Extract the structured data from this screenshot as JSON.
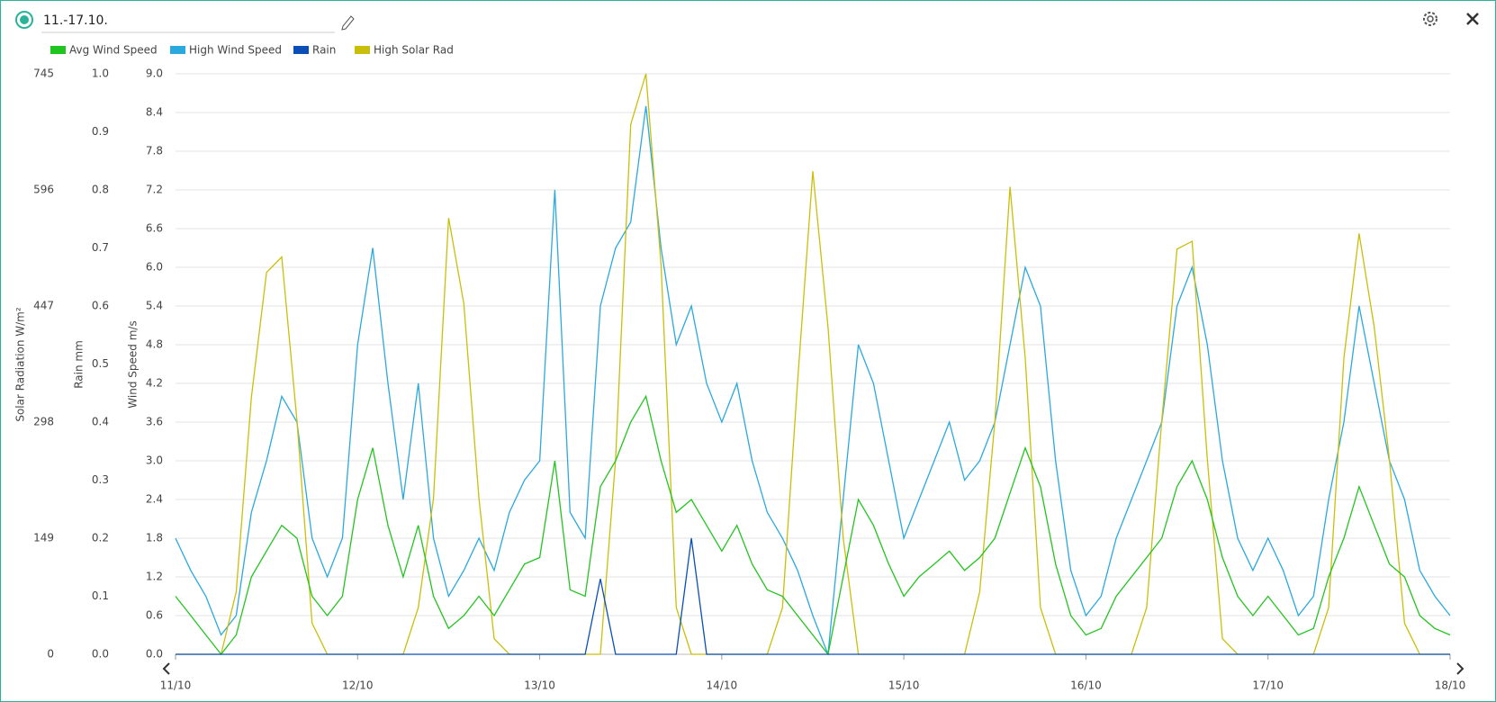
{
  "header": {
    "title": "11.-17.10."
  },
  "chart_data": {
    "type": "line",
    "ylabel": "Wind Speed m/s",
    "y2label": "Rain mm",
    "y3label": "Solar Radiation W/m²",
    "x_labels": [
      "11/10",
      "12/10",
      "13/10",
      "14/10",
      "15/10",
      "16/10",
      "17/10",
      "18/10"
    ],
    "ylim": [
      0,
      9
    ],
    "yticks": [
      {
        "value": 0,
        "label": "0.0"
      },
      0.6,
      1.2,
      1.8,
      2.4,
      {
        "value": 3,
        "label": "3.0"
      },
      3.6,
      4.2,
      4.8,
      5.4,
      {
        "value": 6,
        "label": "6.0"
      },
      6.6,
      7.2,
      7.8,
      8.4,
      {
        "value": 9,
        "label": "9.0"
      }
    ],
    "y2lim": [
      0,
      1
    ],
    "y2ticks": [
      {
        "value": 0,
        "label": "0.0"
      },
      0.1,
      0.2,
      0.3,
      0.4,
      0.5,
      0.6,
      0.7,
      0.8,
      0.9,
      {
        "value": 1,
        "label": "1.0"
      }
    ],
    "y3lim": [
      0,
      745
    ],
    "y3ticks": [
      0,
      149,
      298,
      447,
      596,
      745
    ],
    "grid": true,
    "series": [
      {
        "name": "Avg Wind Speed",
        "color": "#22c41f",
        "axis": "y",
        "values": [
          0.9,
          0.6,
          0.3,
          0,
          0.3,
          1.2,
          1.6,
          2.0,
          1.8,
          0.9,
          0.6,
          0.9,
          2.4,
          3.2,
          2.0,
          1.2,
          2.0,
          0.9,
          0.4,
          0.6,
          0.9,
          0.6,
          1.0,
          1.4,
          1.5,
          3.0,
          1.0,
          0.9,
          2.6,
          3.0,
          3.6,
          4.0,
          3.0,
          2.2,
          2.4,
          2.0,
          1.6,
          2.0,
          1.4,
          1.0,
          0.9,
          0.6,
          0.3,
          0,
          1.2,
          2.4,
          2.0,
          1.4,
          0.9,
          1.2,
          1.4,
          1.6,
          1.3,
          1.5,
          1.8,
          2.5,
          3.2,
          2.6,
          1.4,
          0.6,
          0.3,
          0.4,
          0.9,
          1.2,
          1.5,
          1.8,
          2.6,
          3.0,
          2.4,
          1.5,
          0.9,
          0.6,
          0.9,
          0.6,
          0.3,
          0.4,
          1.2,
          1.8,
          2.6,
          2.0,
          1.4,
          1.2,
          0.6,
          0.4,
          0.3
        ]
      },
      {
        "name": "High Wind Speed",
        "color": "#2aa9de",
        "axis": "y",
        "values": [
          1.8,
          1.3,
          0.9,
          0.3,
          0.6,
          2.2,
          3.0,
          4.0,
          3.6,
          1.8,
          1.2,
          1.8,
          4.8,
          6.3,
          4.2,
          2.4,
          4.2,
          1.8,
          0.9,
          1.3,
          1.8,
          1.3,
          2.2,
          2.7,
          3.0,
          7.2,
          2.2,
          1.8,
          5.4,
          6.3,
          6.7,
          8.5,
          6.3,
          4.8,
          5.4,
          4.2,
          3.6,
          4.2,
          3.0,
          2.2,
          1.8,
          1.3,
          0.6,
          0,
          2.4,
          4.8,
          4.2,
          3.0,
          1.8,
          2.4,
          3.0,
          3.6,
          2.7,
          3.0,
          3.6,
          4.8,
          6.0,
          5.4,
          3.0,
          1.3,
          0.6,
          0.9,
          1.8,
          2.4,
          3.0,
          3.6,
          5.4,
          6.0,
          4.8,
          3.0,
          1.8,
          1.3,
          1.8,
          1.3,
          0.6,
          0.9,
          2.4,
          3.6,
          5.4,
          4.2,
          3.0,
          2.4,
          1.3,
          0.9,
          0.6
        ]
      },
      {
        "name": "Rain",
        "color": "#0a4fb5",
        "axis": "y2",
        "values": [
          0,
          0,
          0,
          0,
          0,
          0,
          0,
          0,
          0,
          0,
          0,
          0,
          0,
          0,
          0,
          0,
          0,
          0,
          0,
          0,
          0,
          0,
          0,
          0,
          0,
          0,
          0,
          0,
          0.13,
          0,
          0,
          0,
          0,
          0,
          0.2,
          0,
          0,
          0,
          0,
          0,
          0,
          0,
          0,
          0,
          0,
          0,
          0,
          0,
          0,
          0,
          0,
          0,
          0,
          0,
          0,
          0,
          0,
          0,
          0,
          0,
          0,
          0,
          0,
          0,
          0,
          0,
          0,
          0,
          0,
          0,
          0,
          0,
          0,
          0,
          0,
          0,
          0,
          0,
          0,
          0,
          0,
          0,
          0,
          0,
          0
        ]
      },
      {
        "name": "High Solar Rad",
        "color": "#c9bf0a",
        "axis": "y3",
        "values": [
          0,
          0,
          0,
          0,
          80,
          330,
          490,
          510,
          300,
          40,
          0,
          0,
          0,
          0,
          0,
          0,
          60,
          200,
          560,
          450,
          200,
          20,
          0,
          0,
          0,
          0,
          0,
          0,
          0,
          250,
          680,
          745,
          500,
          60,
          0,
          0,
          0,
          0,
          0,
          0,
          60,
          350,
          620,
          420,
          150,
          0,
          0,
          0,
          0,
          0,
          0,
          0,
          0,
          80,
          300,
          600,
          380,
          60,
          0,
          0,
          0,
          0,
          0,
          0,
          60,
          300,
          520,
          530,
          250,
          20,
          0,
          0,
          0,
          0,
          0,
          0,
          60,
          380,
          540,
          420,
          250,
          40,
          0,
          0,
          0
        ]
      }
    ]
  }
}
